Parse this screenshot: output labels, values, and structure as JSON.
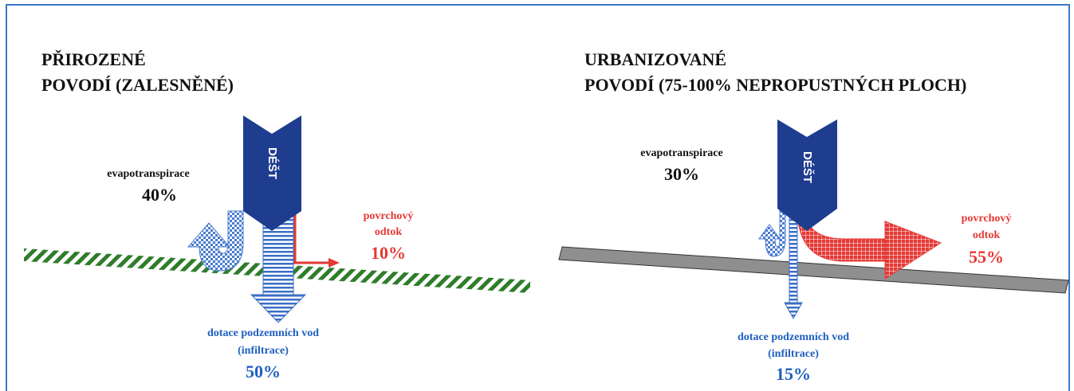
{
  "panels": [
    {
      "title_lines": [
        "PŘIROZENÉ",
        "POVODÍ (ZALESNĚNÉ)"
      ],
      "rain": "DÉŠT",
      "evapotranspiration": {
        "label": "evapotranspirace",
        "percent": "40%"
      },
      "runoff": {
        "label_lines": [
          "povrchový",
          "odtok"
        ],
        "percent": "10%"
      },
      "infiltration": {
        "label_lines": [
          "dotace podzemních vod",
          "(infiltrace)"
        ],
        "percent": "50%"
      }
    },
    {
      "title_lines": [
        "URBANIZOVANÉ",
        "POVODÍ (75-100% NEPROPUSTNÝCH PLOCH)"
      ],
      "rain": "DÉŠT",
      "evapotranspiration": {
        "label": "evapotranspirace",
        "percent": "30%"
      },
      "runoff": {
        "label_lines": [
          "povrchový",
          "odtok"
        ],
        "percent": "55%"
      },
      "infiltration": {
        "label_lines": [
          "dotace podzemních vod",
          "(infiltrace)"
        ],
        "percent": "15%"
      }
    }
  ]
}
